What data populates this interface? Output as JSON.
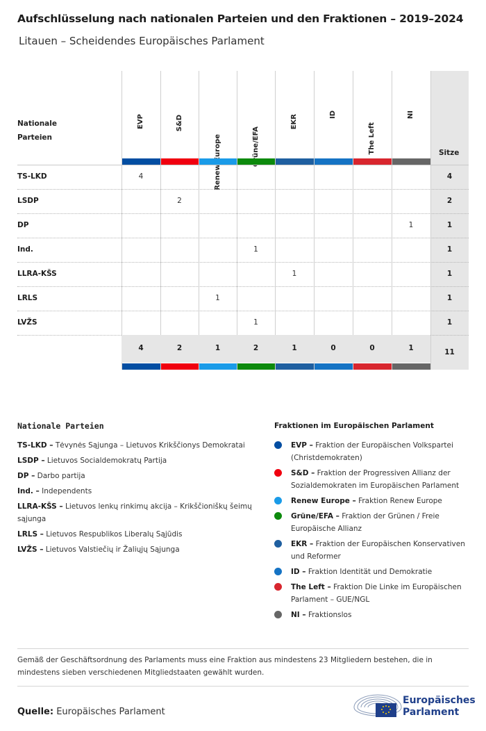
{
  "title": "Aufschlüsselung nach nationalen Parteien und den Fraktionen – 2019–2024",
  "subtitle": "Litauen – Scheidendes Europäisches Parlament",
  "chart_data": {
    "type": "table",
    "row_header": "Nationale Parteien",
    "total_header": "Sitze",
    "groups": [
      {
        "name": "EVP",
        "color": "#034ea2"
      },
      {
        "name": "S&D",
        "color": "#f0000f"
      },
      {
        "name": "Renew Europe",
        "color": "#1a9be8"
      },
      {
        "name": "Grüne/EFA",
        "color": "#0d8a0d"
      },
      {
        "name": "EKR",
        "color": "#1f5fa0"
      },
      {
        "name": "ID",
        "color": "#1573c4"
      },
      {
        "name": "The Left",
        "color": "#d8262e"
      },
      {
        "name": "NI",
        "color": "#666666"
      }
    ],
    "rows": [
      {
        "party": "TS-LKD",
        "values": [
          4,
          null,
          null,
          null,
          null,
          null,
          null,
          null
        ],
        "total": 4
      },
      {
        "party": "LSDP",
        "values": [
          null,
          2,
          null,
          null,
          null,
          null,
          null,
          null
        ],
        "total": 2
      },
      {
        "party": "DP",
        "values": [
          null,
          null,
          null,
          null,
          null,
          null,
          null,
          1
        ],
        "total": 1
      },
      {
        "party": "Ind.",
        "values": [
          null,
          null,
          null,
          1,
          null,
          null,
          null,
          null
        ],
        "total": 1
      },
      {
        "party": "LLRA-KŠS",
        "values": [
          null,
          null,
          null,
          null,
          1,
          null,
          null,
          null
        ],
        "total": 1
      },
      {
        "party": "LRLS",
        "values": [
          null,
          null,
          1,
          null,
          null,
          null,
          null,
          null
        ],
        "total": 1
      },
      {
        "party": "LVŽS",
        "values": [
          null,
          null,
          null,
          1,
          null,
          null,
          null,
          null
        ],
        "total": 1
      }
    ],
    "column_totals": [
      4,
      2,
      1,
      2,
      1,
      0,
      0,
      1
    ],
    "grand_total": 11
  },
  "legend": {
    "national_header": "Nationale Parteien",
    "national": [
      {
        "abbr": "TS-LKD –",
        "text": "Tėvynės Sąjunga – Lietuvos Krikščionys Demokratai"
      },
      {
        "abbr": "LSDP –",
        "text": "Lietuvos Socialdemokratų Partija"
      },
      {
        "abbr": "DP –",
        "text": "Darbo partija"
      },
      {
        "abbr": "Ind. –",
        "text": "Independents"
      },
      {
        "abbr": "LLRA-KŠS –",
        "text": "Lietuvos lenkų rinkimų akcija – Krikščioniškų šeimų sąjunga"
      },
      {
        "abbr": "LRLS –",
        "text": "Lietuvos Respublikos Liberalų Sąjūdis"
      },
      {
        "abbr": "LVŽS –",
        "text": "Lietuvos Valstiečių ir Žaliųjų Sąjunga"
      }
    ],
    "groups_header": "Fraktionen im Europäischen Parlament",
    "groups": [
      {
        "abbr": "EVP –",
        "text": "Fraktion der Europäischen Volkspartei (Christdemokraten)",
        "color": "#034ea2"
      },
      {
        "abbr": "S&D –",
        "text": "Fraktion der Progressiven Allianz der Sozialdemokraten im Europäischen Parlament",
        "color": "#f0000f"
      },
      {
        "abbr": "Renew Europe –",
        "text": "Fraktion Renew Europe",
        "color": "#1a9be8"
      },
      {
        "abbr": "Grüne/EFA –",
        "text": "Fraktion der Grünen / Freie Europäische Allianz",
        "color": "#0d8a0d"
      },
      {
        "abbr": "EKR –",
        "text": "Fraktion der Europäischen Konservativen und Reformer",
        "color": "#1f5fa0"
      },
      {
        "abbr": "ID –",
        "text": "Fraktion Identität und Demokratie",
        "color": "#1573c4"
      },
      {
        "abbr": "The Left –",
        "text": "Fraktion Die Linke im Europäischen Parlament – GUE/NGL",
        "color": "#d8262e"
      },
      {
        "abbr": "NI –",
        "text": "Fraktionslos",
        "color": "#666666"
      }
    ]
  },
  "note": "Gemäß der Geschäftsordnung des Parlaments muss eine Fraktion aus mindestens 23 Mitgliedern bestehen, die in mindestens sieben verschiedenen Mitgliedstaaten gewählt wurden.",
  "source_label": "Quelle:",
  "source_text": "Europäisches Parlament",
  "logo_line1": "Europäisches",
  "logo_line2": "Parlament"
}
